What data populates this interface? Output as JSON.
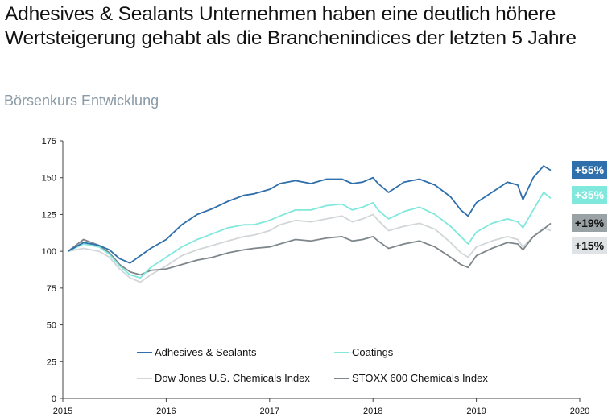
{
  "headline": "Adhesives & Sealants Unternehmen haben eine deutlich höhere Wertsteigerung gehabt als die Branchenindices der letzten 5 Jahre",
  "subtitle": "Börsenkurs Entwicklung",
  "colors": {
    "adhesives": "#2f6fab",
    "coatings": "#80e8dc",
    "dowjones": "#d2d6d8",
    "stoxx": "#7e878c"
  },
  "badges": [
    {
      "label": "+55%",
      "bg": "#2f6fab",
      "fg": "#ffffff"
    },
    {
      "label": "+35%",
      "bg": "#80e8dc",
      "fg": "#ffffff"
    },
    {
      "label": "+19%",
      "bg": "#9aa2a6",
      "fg": "#111111"
    },
    {
      "label": "+15%",
      "bg": "#dfe3e5",
      "fg": "#111111"
    }
  ],
  "chart_data": {
    "type": "line",
    "title": "",
    "xlabel": "",
    "ylabel": "",
    "ylim": [
      0,
      175
    ],
    "yticks": [
      0,
      25,
      50,
      75,
      100,
      125,
      150,
      175
    ],
    "xlim": [
      2015,
      2020
    ],
    "xticks": [
      "2015",
      "2016",
      "2017",
      "2018",
      "2019",
      "2020"
    ],
    "grid": false,
    "legend": "bottom-center",
    "x": [
      2015.05,
      2015.2,
      2015.35,
      2015.45,
      2015.55,
      2015.65,
      2015.75,
      2015.85,
      2016.0,
      2016.15,
      2016.3,
      2016.45,
      2016.6,
      2016.75,
      2016.85,
      2017.0,
      2017.1,
      2017.25,
      2017.4,
      2017.55,
      2017.7,
      2017.8,
      2017.9,
      2018.0,
      2018.05,
      2018.15,
      2018.3,
      2018.45,
      2018.6,
      2018.75,
      2018.85,
      2018.92,
      2019.0,
      2019.15,
      2019.3,
      2019.4,
      2019.45,
      2019.55,
      2019.65,
      2019.72
    ],
    "series": [
      {
        "name": "Adhesives & Sealants",
        "color_key": "adhesives",
        "values": [
          100,
          106,
          104,
          101,
          95,
          92,
          97,
          102,
          108,
          118,
          125,
          129,
          134,
          138,
          139,
          142,
          146,
          148,
          146,
          149,
          149,
          146,
          147,
          150,
          146,
          140,
          147,
          149,
          145,
          137,
          128,
          124,
          133,
          140,
          147,
          145,
          135,
          150,
          158,
          155
        ]
      },
      {
        "name": "Coatings",
        "color_key": "coatings",
        "values": [
          100,
          105,
          103,
          98,
          90,
          84,
          82,
          89,
          96,
          103,
          108,
          112,
          116,
          118,
          118,
          121,
          124,
          128,
          128,
          131,
          132,
          128,
          130,
          133,
          128,
          122,
          127,
          130,
          125,
          117,
          110,
          105,
          113,
          119,
          122,
          120,
          116,
          128,
          140,
          136
        ]
      },
      {
        "name": "Dow Jones U.S. Chemicals Index",
        "color_key": "dowjones",
        "values": [
          100,
          102,
          100,
          96,
          88,
          82,
          79,
          84,
          90,
          97,
          101,
          104,
          107,
          110,
          111,
          114,
          118,
          121,
          120,
          122,
          124,
          120,
          122,
          125,
          121,
          114,
          117,
          119,
          115,
          106,
          99,
          96,
          103,
          107,
          110,
          108,
          103,
          110,
          116,
          114
        ]
      },
      {
        "name": "STOXX 600 Chemicals Index",
        "color_key": "stoxx",
        "values": [
          100,
          108,
          104,
          99,
          91,
          86,
          84,
          87,
          88,
          91,
          94,
          96,
          99,
          101,
          102,
          103,
          105,
          108,
          107,
          109,
          110,
          107,
          108,
          110,
          107,
          102,
          105,
          107,
          103,
          96,
          91,
          89,
          97,
          102,
          106,
          105,
          101,
          110,
          115,
          119
        ]
      }
    ],
    "end_labels": [
      "+55%",
      "+35%",
      "+19%",
      "+15%"
    ]
  }
}
